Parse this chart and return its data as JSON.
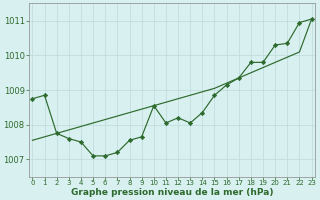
{
  "hours": [
    0,
    1,
    2,
    3,
    4,
    5,
    6,
    7,
    8,
    9,
    10,
    11,
    12,
    13,
    14,
    15,
    16,
    17,
    18,
    19,
    20,
    21,
    22,
    23
  ],
  "pressure_measured": [
    1008.75,
    1008.85,
    1007.75,
    1007.6,
    1007.5,
    1007.1,
    1007.1,
    1007.2,
    1007.55,
    1007.65,
    1008.55,
    1008.05,
    1008.2,
    1008.05,
    1008.35,
    1008.85,
    1009.15,
    1009.35,
    1009.8,
    1009.8,
    1010.3,
    1010.35,
    1010.95,
    1011.05
  ],
  "pressure_trend": [
    1007.55,
    1007.65,
    1007.75,
    1007.85,
    1007.95,
    1008.05,
    1008.15,
    1008.25,
    1008.35,
    1008.45,
    1008.55,
    1008.65,
    1008.75,
    1008.85,
    1008.95,
    1009.05,
    1009.2,
    1009.35,
    1009.5,
    1009.65,
    1009.8,
    1009.95,
    1010.1,
    1011.05
  ],
  "line_color": "#2d6a2d",
  "bg_color": "#d9f0f0",
  "grid_color": "#c0dede",
  "xlabel_text": "Graphe pression niveau de la mer (hPa)",
  "ylim": [
    1006.5,
    1011.5
  ],
  "xlim": [
    -0.3,
    23.3
  ],
  "yticks": [
    1007,
    1008,
    1009,
    1010,
    1011
  ],
  "xtick_labels": [
    "0",
    "1",
    "2",
    "3",
    "4",
    "5",
    "6",
    "7",
    "8",
    "9",
    "10",
    "11",
    "12",
    "13",
    "14",
    "15",
    "16",
    "17",
    "18",
    "19",
    "20",
    "21",
    "22",
    "23"
  ],
  "marker": "D",
  "markersize": 2.2,
  "linewidth": 0.85
}
